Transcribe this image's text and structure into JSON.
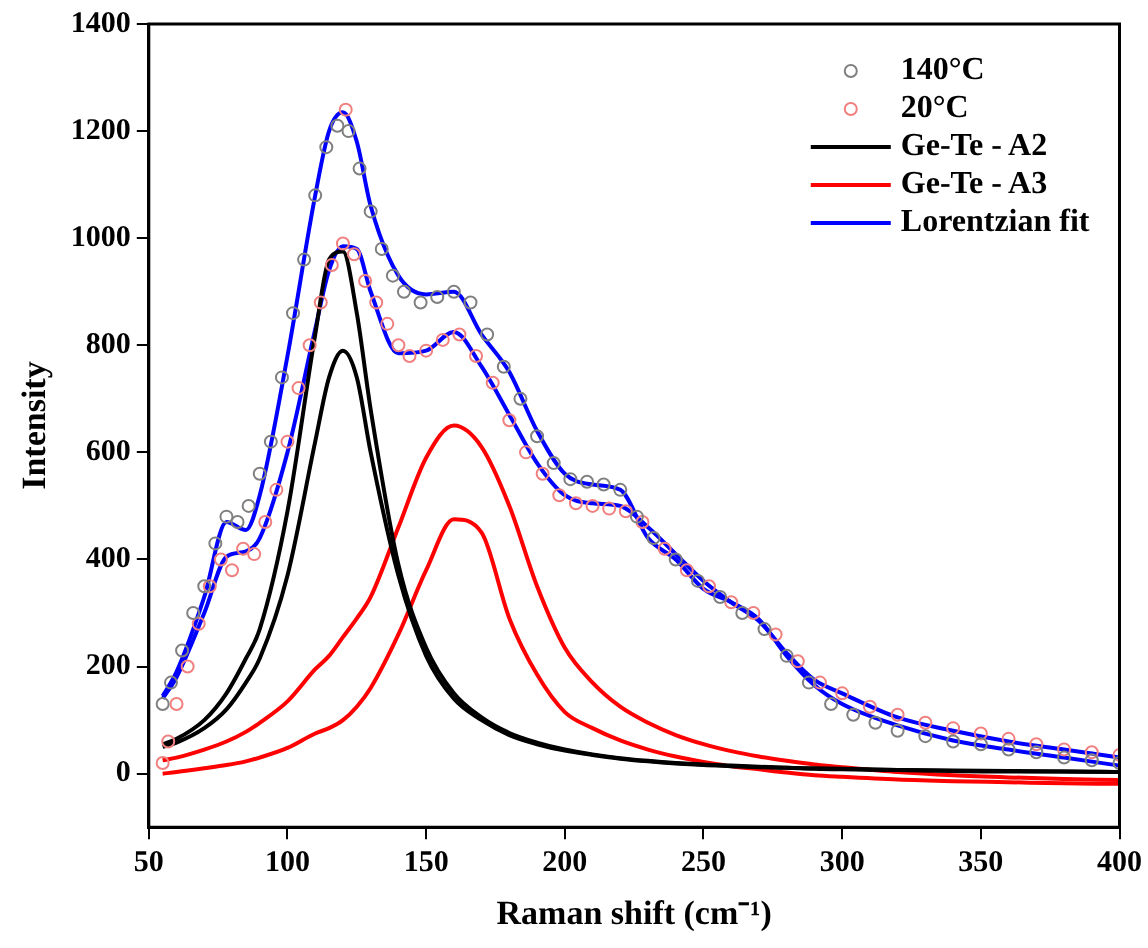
{
  "chart_data": {
    "type": "line",
    "xlabel": "Raman shift (cm⁻¹)",
    "ylabel": "Intensity",
    "xlim": [
      50,
      400
    ],
    "xticks": [
      50,
      100,
      150,
      200,
      250,
      300,
      350,
      400
    ],
    "ylim": [
      -100,
      1400
    ],
    "yticks": [
      0,
      200,
      400,
      600,
      800,
      1000,
      1200,
      1400
    ],
    "legend": "top right",
    "x": [
      55,
      60,
      70,
      78,
      85,
      90,
      100,
      110,
      115,
      120,
      125,
      130,
      140,
      150,
      160,
      170,
      180,
      190,
      200,
      210,
      220,
      230,
      240,
      250,
      260,
      270,
      280,
      290,
      300,
      320,
      340,
      360,
      380,
      400
    ],
    "series": [
      {
        "name": "140°C",
        "type": "scatter",
        "marker": "circle",
        "color": "#808080",
        "x": [
          55,
          58,
          62,
          66,
          70,
          74,
          78,
          82,
          86,
          90,
          94,
          98,
          102,
          106,
          110,
          114,
          118,
          122,
          126,
          130,
          134,
          138,
          142,
          148,
          154,
          160,
          166,
          172,
          178,
          184,
          190,
          196,
          202,
          208,
          214,
          220,
          226,
          232,
          240,
          248,
          256,
          264,
          272,
          280,
          288,
          296,
          304,
          312,
          320,
          330,
          340,
          350,
          360,
          370,
          380,
          390,
          400
        ],
        "values": [
          130,
          170,
          230,
          300,
          350,
          430,
          480,
          470,
          500,
          560,
          620,
          740,
          860,
          960,
          1080,
          1170,
          1210,
          1200,
          1130,
          1050,
          980,
          930,
          900,
          880,
          890,
          900,
          880,
          820,
          760,
          700,
          630,
          580,
          550,
          545,
          540,
          530,
          480,
          440,
          400,
          360,
          330,
          300,
          270,
          220,
          170,
          130,
          110,
          95,
          80,
          70,
          60,
          55,
          45,
          40,
          30,
          25,
          20
        ]
      },
      {
        "name": "20°C",
        "type": "scatter",
        "marker": "circle",
        "color": "#f08080",
        "x": [
          55,
          57,
          60,
          64,
          68,
          72,
          76,
          80,
          84,
          88,
          92,
          96,
          100,
          104,
          108,
          112,
          116,
          120,
          121,
          124,
          128,
          132,
          136,
          140,
          144,
          150,
          156,
          162,
          168,
          174,
          180,
          186,
          192,
          198,
          204,
          210,
          216,
          222,
          228,
          236,
          244,
          252,
          260,
          268,
          276,
          284,
          292,
          300,
          310,
          320,
          330,
          340,
          350,
          360,
          370,
          380,
          390,
          400
        ],
        "values": [
          20,
          60,
          130,
          200,
          280,
          350,
          400,
          380,
          420,
          410,
          470,
          530,
          620,
          720,
          800,
          880,
          950,
          990,
          1240,
          970,
          920,
          880,
          840,
          800,
          780,
          790,
          810,
          820,
          780,
          730,
          660,
          600,
          560,
          520,
          505,
          500,
          495,
          490,
          470,
          420,
          380,
          350,
          320,
          300,
          260,
          210,
          170,
          150,
          125,
          110,
          95,
          85,
          75,
          65,
          55,
          45,
          40,
          35
        ]
      },
      {
        "name": "Ge-Te - A2",
        "type": "line",
        "marker": "none",
        "color": "#000000",
        "values": [
          55,
          65,
          100,
          150,
          215,
          270,
          490,
          820,
          960,
          975,
          860,
          680,
          390,
          235,
          150,
          105,
          76,
          58,
          45,
          36,
          29,
          24,
          20,
          17,
          15,
          13,
          11,
          10,
          9,
          7,
          6,
          5,
          4,
          3
        ]
      },
      {
        "type": "line",
        "marker": "none",
        "color": "#000000",
        "values": [
          50,
          58,
          85,
          120,
          170,
          215,
          370,
          620,
          740,
          790,
          740,
          600,
          370,
          220,
          140,
          100,
          72,
          55,
          43,
          35,
          28,
          23,
          19,
          16,
          14,
          12,
          11,
          9,
          8,
          7,
          5,
          4,
          4,
          3
        ]
      },
      {
        "name": "Ge-Te - A3",
        "type": "line",
        "marker": "none",
        "color": "#ff0000",
        "values": [
          25,
          30,
          45,
          60,
          78,
          95,
          135,
          195,
          220,
          255,
          290,
          330,
          460,
          590,
          650,
          610,
          500,
          350,
          235,
          170,
          125,
          95,
          72,
          55,
          42,
          32,
          24,
          17,
          12,
          3,
          -3,
          -7,
          -10,
          -12
        ]
      },
      {
        "type": "line",
        "marker": "none",
        "color": "#ff0000",
        "values": [
          0,
          3,
          10,
          16,
          23,
          30,
          48,
          75,
          85,
          100,
          125,
          160,
          260,
          380,
          475,
          450,
          290,
          185,
          115,
          85,
          62,
          45,
          32,
          22,
          14,
          8,
          2,
          -3,
          -6,
          -11,
          -14,
          -16,
          -18,
          -19
        ]
      },
      {
        "name": "Lorentzian fit",
        "type": "line",
        "marker": "none",
        "color": "#0000ff",
        "values": [
          145,
          190,
          330,
          470,
          455,
          520,
          780,
          1080,
          1200,
          1235,
          1180,
          1060,
          930,
          895,
          900,
          820,
          750,
          640,
          560,
          540,
          530,
          440,
          400,
          345,
          320,
          288,
          220,
          165,
          130,
          90,
          62,
          45,
          30,
          15
        ]
      },
      {
        "type": "line",
        "marker": "none",
        "color": "#0000ff",
        "values": [
          140,
          180,
          300,
          405,
          415,
          440,
          600,
          830,
          940,
          985,
          980,
          900,
          785,
          790,
          825,
          760,
          670,
          580,
          520,
          505,
          500,
          460,
          410,
          360,
          320,
          285,
          225,
          175,
          150,
          105,
          80,
          60,
          45,
          30
        ]
      }
    ]
  }
}
